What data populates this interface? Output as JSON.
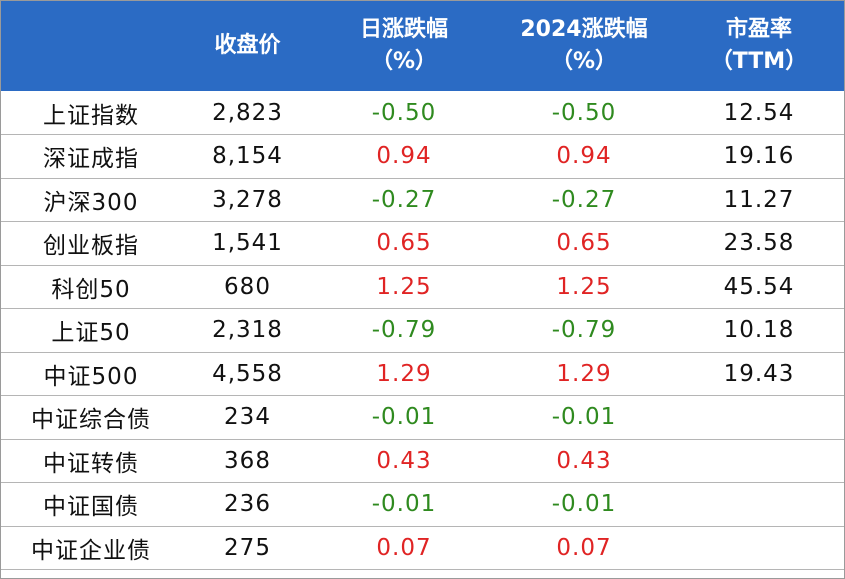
{
  "chart_data": {
    "type": "table",
    "headers": [
      {
        "line1": "",
        "line2": ""
      },
      {
        "line1": "收盘价",
        "line2": ""
      },
      {
        "line1": "日涨跌幅",
        "line2": "（%）"
      },
      {
        "line1": "2024涨跌幅",
        "line2": "（%）"
      },
      {
        "line1": "市盈率",
        "line2": "（TTM）"
      }
    ],
    "rows": [
      {
        "name": "上证指数",
        "close": "2,823",
        "daily": "-0.50",
        "ytd": "-0.50",
        "pe": "12.54"
      },
      {
        "name": "深证成指",
        "close": "8,154",
        "daily": "0.94",
        "ytd": "0.94",
        "pe": "19.16"
      },
      {
        "name": "沪深300",
        "close": "3,278",
        "daily": "-0.27",
        "ytd": "-0.27",
        "pe": "11.27"
      },
      {
        "name": "创业板指",
        "close": "1,541",
        "daily": "0.65",
        "ytd": "0.65",
        "pe": "23.58"
      },
      {
        "name": "科创50",
        "close": "680",
        "daily": "1.25",
        "ytd": "1.25",
        "pe": "45.54"
      },
      {
        "name": "上证50",
        "close": "2,318",
        "daily": "-0.79",
        "ytd": "-0.79",
        "pe": "10.18"
      },
      {
        "name": "中证500",
        "close": "4,558",
        "daily": "1.29",
        "ytd": "1.29",
        "pe": "19.43"
      },
      {
        "name": "中证综合债",
        "close": "234",
        "daily": "-0.01",
        "ytd": "-0.01",
        "pe": ""
      },
      {
        "name": "中证转债",
        "close": "368",
        "daily": "0.43",
        "ytd": "0.43",
        "pe": ""
      },
      {
        "name": "中证国债",
        "close": "236",
        "daily": "-0.01",
        "ytd": "-0.01",
        "pe": ""
      },
      {
        "name": "中证企业债",
        "close": "275",
        "daily": "0.07",
        "ytd": "0.07",
        "pe": ""
      }
    ]
  },
  "colors": {
    "header_bg": "#2b6bc4",
    "header_text": "#ffffff",
    "positive": "#e02424",
    "negative": "#2f8a1f",
    "text": "#111111"
  }
}
